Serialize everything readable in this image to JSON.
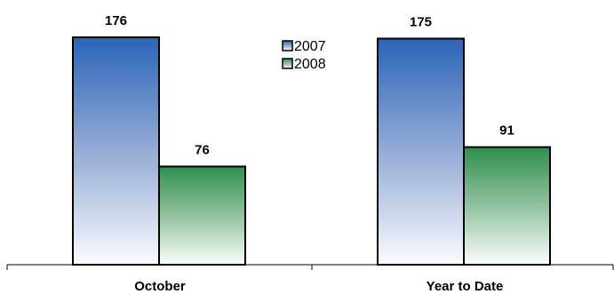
{
  "chart_data": {
    "type": "bar",
    "categories": [
      "October",
      "Year to Date"
    ],
    "series": [
      {
        "name": "2007",
        "values": [
          176,
          175
        ],
        "color": "#2f63b7"
      },
      {
        "name": "2008",
        "values": [
          76,
          91
        ],
        "color": "#2f8f4f"
      }
    ],
    "ylim": [
      0,
      176
    ],
    "grid": false,
    "legend_position": "top-center"
  }
}
